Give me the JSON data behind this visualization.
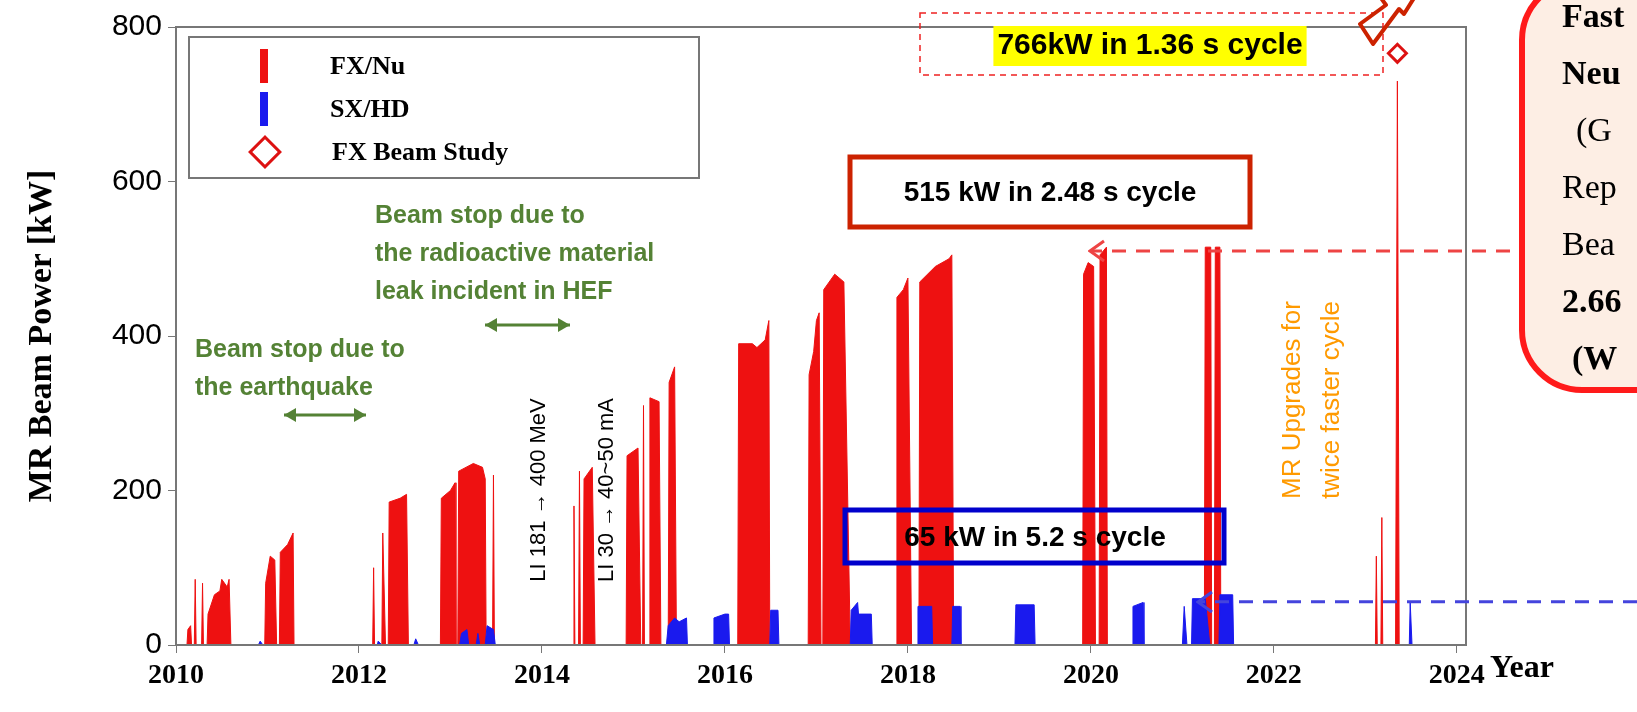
{
  "chart_data": {
    "type": "area",
    "xlabel": "Year",
    "ylabel": "MR Beam Power [kW]",
    "xlim": [
      2010,
      2024.1
    ],
    "xticks": [
      2010,
      2012,
      2014,
      2016,
      2018,
      2020,
      2022,
      2024
    ],
    "ylim": [
      0,
      800
    ],
    "yticks": [
      0,
      200,
      400,
      600,
      800
    ],
    "legend": "top left",
    "series": [
      {
        "name": "FX/Nu",
        "color": "#ee1111",
        "x": [
          2010.12,
          2010.13,
          2010.16,
          2010.17,
          2010.2,
          2010.21,
          2010.22,
          2010.28,
          2010.29,
          2010.3,
          2010.34,
          2010.35,
          2010.42,
          2010.48,
          2010.5,
          2010.56,
          2010.58,
          2010.6,
          2010.97,
          2010.98,
          2011.03,
          2011.08,
          2011.1,
          2011.13,
          2011.14,
          2011.22,
          2011.28,
          2011.29,
          2012.15,
          2012.16,
          2012.17,
          2012.25,
          2012.26,
          2012.29,
          2012.32,
          2012.33,
          2012.45,
          2012.52,
          2012.54,
          2012.89,
          2012.9,
          2013.0,
          2013.05,
          2013.06,
          2013.08,
          2013.09,
          2013.25,
          2013.35,
          2013.38,
          2013.39,
          2013.46,
          2013.47,
          2013.48,
          2014.34,
          2014.35,
          2014.36,
          2014.4,
          2014.41,
          2014.42,
          2014.45,
          2014.46,
          2014.55,
          2014.58,
          2014.92,
          2014.93,
          2015.05,
          2015.08,
          2015.1,
          2015.11,
          2015.12,
          2015.17,
          2015.18,
          2015.28,
          2015.3,
          2015.38,
          2015.39,
          2015.45,
          2015.47,
          2016.14,
          2016.15,
          2016.3,
          2016.35,
          2016.44,
          2016.48,
          2016.49,
          2016.91,
          2016.92,
          2016.97,
          2017.0,
          2017.03,
          2017.05,
          2017.07,
          2017.08,
          2017.2,
          2017.3,
          2017.37,
          2017.87,
          2017.88,
          2017.95,
          2018.0,
          2018.04,
          2018.12,
          2018.13,
          2018.3,
          2018.45,
          2018.48,
          2018.5,
          2019.91,
          2019.92,
          2019.97,
          2020.03,
          2020.05,
          2020.09,
          2020.1,
          2020.17,
          2020.18,
          2021.24,
          2021.25,
          2021.31,
          2021.32,
          2021.35,
          2021.36,
          2021.41,
          2021.42,
          2023.11,
          2023.12,
          2023.13,
          2023.17,
          2023.18,
          2023.19,
          2023.33,
          2023.35,
          2023.37
        ],
        "values": [
          0,
          20,
          25,
          0,
          0,
          85,
          0,
          0,
          80,
          0,
          0,
          40,
          65,
          70,
          85,
          75,
          85,
          0,
          0,
          80,
          115,
          110,
          0,
          0,
          120,
          130,
          145,
          0,
          0,
          100,
          0,
          0,
          145,
          0,
          0,
          185,
          190,
          195,
          0,
          0,
          190,
          200,
          210,
          0,
          0,
          225,
          235,
          230,
          215,
          0,
          0,
          220,
          0,
          0,
          180,
          0,
          0,
          225,
          0,
          0,
          215,
          230,
          0,
          0,
          245,
          255,
          0,
          0,
          310,
          0,
          0,
          320,
          315,
          0,
          0,
          340,
          360,
          0,
          0,
          390,
          390,
          385,
          395,
          420,
          0,
          0,
          350,
          380,
          420,
          430,
          0,
          0,
          460,
          480,
          470,
          0,
          0,
          450,
          460,
          475,
          0,
          0,
          470,
          490,
          500,
          505,
          0,
          0,
          480,
          495,
          490,
          0,
          0,
          505,
          515,
          0,
          0,
          515,
          515,
          0,
          0,
          515,
          515,
          0,
          0,
          115,
          0,
          0,
          165,
          0,
          0,
          730,
          0
        ]
      },
      {
        "name": "SX/HD",
        "color": "#1a1aee",
        "x": [
          2010.9,
          2010.92,
          2010.95,
          2012.2,
          2012.21,
          2012.25,
          2012.6,
          2012.62,
          2012.65,
          2013.1,
          2013.12,
          2013.18,
          2013.2,
          2013.28,
          2013.3,
          2013.32,
          2013.38,
          2013.4,
          2013.47,
          2013.49,
          2015.36,
          2015.38,
          2015.45,
          2015.5,
          2015.58,
          2015.59,
          2015.87,
          2015.88,
          2016.0,
          2016.04,
          2016.05,
          2016.49,
          2016.5,
          2016.58,
          2016.59,
          2017.37,
          2017.38,
          2017.45,
          2017.46,
          2017.6,
          2017.61,
          2018.1,
          2018.11,
          2018.26,
          2018.27,
          2018.48,
          2018.49,
          2018.57,
          2018.58,
          2019.17,
          2019.18,
          2019.38,
          2019.39,
          2020.45,
          2020.46,
          2020.57,
          2020.58,
          2021.0,
          2021.02,
          2021.05,
          2021.1,
          2021.11,
          2021.25,
          2021.3,
          2021.4,
          2021.41,
          2021.55,
          2021.56,
          2023.48,
          2023.49,
          2023.51
        ],
        "values": [
          0,
          5,
          0,
          0,
          5,
          0,
          0,
          8,
          0,
          0,
          15,
          20,
          0,
          0,
          15,
          0,
          0,
          25,
          20,
          0,
          0,
          25,
          35,
          30,
          35,
          0,
          0,
          35,
          40,
          40,
          0,
          0,
          45,
          45,
          0,
          0,
          45,
          55,
          40,
          40,
          0,
          0,
          50,
          50,
          0,
          0,
          50,
          50,
          0,
          0,
          52,
          52,
          0,
          0,
          50,
          55,
          0,
          0,
          50,
          0,
          0,
          60,
          60,
          0,
          0,
          65,
          65,
          0,
          0,
          55,
          0
        ]
      },
      {
        "name": "FX Beam Study",
        "type": "scatter",
        "marker": "diamond",
        "color": "#dd1111",
        "x": [
          2023.35
        ],
        "values": [
          766
        ]
      }
    ],
    "ref_lines": [
      {
        "axis": "y",
        "value": 510,
        "color": "#ee4444",
        "line_style": "dashed"
      },
      {
        "axis": "y",
        "value": 56,
        "color": "#4444dd",
        "line_style": "dashed"
      }
    ],
    "annotations": [
      "766kW in 1.36 s cycle",
      "515 kW in 2.48 s cycle",
      "65 kW in 5.2 s cycle",
      "Beam stop due to\nthe radioactive material\nleak incident in HEF",
      "Beam stop due to\nthe earthquake",
      "LI 181 → 400 MeV",
      "LI 30 → 40~50 mA",
      "MR Upgrades for\ntwice faster cycle",
      "Fast\nNeu\n(G\nRep\nBea\n2.66\n(W"
    ]
  }
}
